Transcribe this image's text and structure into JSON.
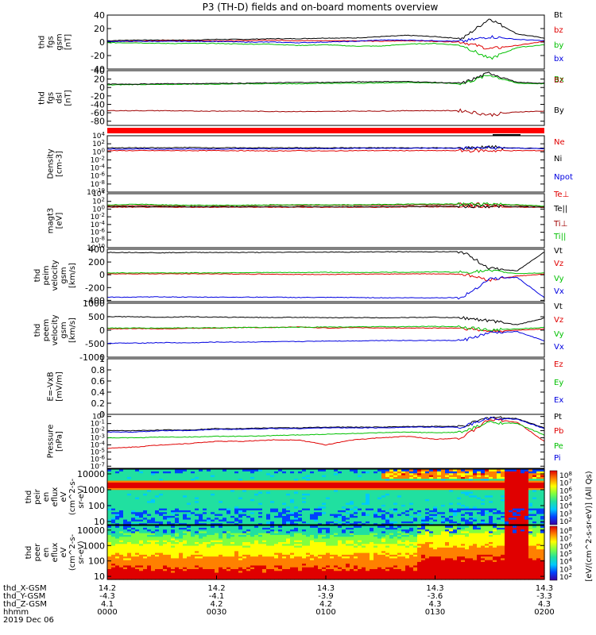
{
  "title": "P3 (TH-D) fields and on-board moments overview",
  "chart_data": [
    {
      "type": "line",
      "ylabel": [
        "thd",
        "fgs",
        "gsm",
        "[nT]"
      ],
      "yticks": [
        40,
        20,
        0,
        -20,
        -40
      ],
      "ylim": [
        -40,
        40
      ],
      "legend": [
        {
          "name": "Bt",
          "color": "#000000"
        },
        {
          "name": "bz",
          "color": "#e00000"
        },
        {
          "name": "by",
          "color": "#00c000"
        },
        {
          "name": "bx",
          "color": "#0000e0"
        }
      ],
      "series": [
        {
          "name": "Bt",
          "values": [
            2,
            3,
            3,
            3,
            4,
            4,
            5,
            5,
            6,
            6,
            8,
            10,
            8,
            5,
            35,
            12,
            6
          ]
        },
        {
          "name": "bz",
          "values": [
            1,
            1,
            2,
            2,
            2,
            2,
            3,
            2,
            2,
            2,
            1,
            2,
            1,
            0,
            -10,
            -5,
            1
          ]
        },
        {
          "name": "by",
          "values": [
            -1,
            -1,
            -2,
            -2,
            -2,
            -3,
            -3,
            -5,
            -4,
            -6,
            -6,
            -3,
            -2,
            -5,
            -25,
            -8,
            -4
          ]
        },
        {
          "name": "bx",
          "values": [
            1,
            1,
            1,
            1,
            1,
            0,
            0,
            -1,
            0,
            1,
            3,
            3,
            2,
            1,
            8,
            4,
            2
          ]
        }
      ]
    },
    {
      "type": "line",
      "ylabel": [
        "thd",
        "fgs",
        "dsl",
        "[nT]"
      ],
      "yticks": [
        40,
        20,
        0,
        -20,
        -40,
        -60,
        -80
      ],
      "ylim": [
        -90,
        40
      ],
      "legend": [
        {
          "name": "Bx",
          "color": "#00c000"
        },
        {
          "name": "By",
          "color": "#000000"
        },
        {
          "name": "Bz",
          "color": "#a00000"
        }
      ],
      "series": [
        {
          "name": "Bx",
          "values": [
            6,
            7,
            7,
            8,
            8,
            9,
            9,
            9,
            10,
            10,
            11,
            12,
            11,
            9,
            30,
            10,
            9
          ]
        },
        {
          "name": "By",
          "values": [
            8,
            8,
            9,
            9,
            10,
            10,
            11,
            12,
            12,
            13,
            14,
            14,
            12,
            10,
            35,
            12,
            10
          ]
        },
        {
          "name": "Bz",
          "values": [
            -55,
            -55,
            -55,
            -56,
            -56,
            -56,
            -57,
            -57,
            -57,
            -56,
            -56,
            -55,
            -55,
            -55,
            -65,
            -58,
            -56
          ]
        }
      ]
    },
    {
      "type": "line",
      "ylabel": [
        "Density",
        "[cm-3]"
      ],
      "yticks": [
        "10^4",
        "10^2",
        "10^0",
        "10^-2",
        "10^-4",
        "10^-6",
        "10^-8",
        "10^-10"
      ],
      "log_y": true,
      "ylim": [
        -10,
        4
      ],
      "legend": [
        {
          "name": "Ne",
          "color": "#e00000"
        },
        {
          "name": "Ni",
          "color": "#000000"
        },
        {
          "name": "Npot",
          "color": "#0000e0"
        }
      ],
      "series": [
        {
          "name": "Ne",
          "values": [
            0.3,
            0.3,
            0.3,
            0.3,
            0.3,
            0.3,
            0.2,
            0.3,
            0.2,
            0.3,
            0.3,
            0.3,
            0.3,
            0.3,
            0.3,
            0.3,
            0.3
          ]
        },
        {
          "name": "Ni",
          "values": [
            1.0,
            1.0,
            1.0,
            1.1,
            1.0,
            1.0,
            1.0,
            1.0,
            1.0,
            1.0,
            1.0,
            1.0,
            1.0,
            0.9,
            1.2,
            0.9,
            0.9
          ]
        },
        {
          "name": "Npot",
          "values": [
            0.7,
            0.7,
            0.7,
            0.7,
            0.7,
            0.8,
            0.7,
            0.8,
            0.8,
            0.9,
            0.9,
            0.9,
            0.9,
            0.9,
            1.0,
            0.9,
            0.8
          ]
        }
      ]
    },
    {
      "type": "line",
      "ylabel": [
        "magt3",
        "[eV]"
      ],
      "yticks": [
        "10^4",
        "10^2",
        "10^0",
        "10^-2",
        "10^-4",
        "10^-6",
        "10^-8",
        "10^-10"
      ],
      "log_y": true,
      "ylim": [
        -10,
        4
      ],
      "legend": [
        {
          "name": "Te⊥",
          "color": "#e00000"
        },
        {
          "name": "Te||",
          "color": "#000000"
        },
        {
          "name": "Ti⊥",
          "color": "#a00000"
        },
        {
          "name": "Ti||",
          "color": "#00c000"
        }
      ],
      "series": [
        {
          "name": "Te⊥",
          "values": [
            0.5,
            0.5,
            0.5,
            0.5,
            0.5,
            0.5,
            0.5,
            0.5,
            0.5,
            0.5,
            0.5,
            0.6,
            0.6,
            0.6,
            0.7,
            0.5,
            0.5
          ]
        },
        {
          "name": "Te||",
          "values": [
            0.6,
            0.6,
            0.6,
            0.6,
            0.6,
            0.6,
            0.6,
            0.6,
            0.6,
            0.6,
            0.6,
            0.7,
            0.7,
            0.7,
            0.8,
            0.6,
            0.5
          ]
        },
        {
          "name": "Ti⊥",
          "values": [
            0.9,
            0.9,
            0.9,
            0.9,
            0.9,
            0.9,
            1.0,
            1.0,
            1.0,
            1.0,
            1.0,
            1.1,
            1.1,
            1.2,
            1.2,
            1.0,
            0.7
          ]
        },
        {
          "name": "Ti||",
          "values": [
            1.0,
            1.3,
            1.1,
            1.0,
            1.0,
            1.0,
            1.1,
            1.1,
            1.1,
            1.1,
            1.2,
            1.3,
            1.3,
            1.3,
            1.4,
            1.1,
            0.8
          ]
        }
      ]
    },
    {
      "type": "line",
      "ylabel": [
        "thd",
        "peim",
        "velocity",
        "gsm",
        "[km/s]"
      ],
      "yticks": [
        400,
        200,
        0,
        -200,
        -400
      ],
      "ylim": [
        -420,
        400
      ],
      "legend": [
        {
          "name": "Vt",
          "color": "#000000"
        },
        {
          "name": "Vz",
          "color": "#e00000"
        },
        {
          "name": "Vy",
          "color": "#00c000"
        },
        {
          "name": "Vx",
          "color": "#0000e0"
        }
      ],
      "series": [
        {
          "name": "Vt",
          "values": [
            350,
            350,
            345,
            350,
            350,
            350,
            350,
            355,
            355,
            355,
            360,
            360,
            360,
            360,
            100,
            60,
            360
          ]
        },
        {
          "name": "Vz",
          "values": [
            15,
            15,
            15,
            15,
            15,
            10,
            10,
            5,
            5,
            10,
            10,
            15,
            15,
            10,
            -80,
            -20,
            10
          ]
        },
        {
          "name": "Vy",
          "values": [
            30,
            30,
            30,
            30,
            30,
            35,
            35,
            35,
            40,
            35,
            40,
            40,
            45,
            40,
            60,
            20,
            30
          ]
        },
        {
          "name": "Vx",
          "values": [
            -350,
            -350,
            -345,
            -350,
            -350,
            -350,
            -350,
            -355,
            -355,
            -355,
            -360,
            -360,
            -360,
            -355,
            -60,
            -40,
            -360
          ]
        }
      ]
    },
    {
      "type": "line",
      "ylabel": [
        "thd",
        "peem",
        "velocity",
        "gsm",
        "[km/s]"
      ],
      "yticks": [
        1000,
        500,
        0,
        -500,
        -1000
      ],
      "ylim": [
        -1000,
        1000
      ],
      "legend": [
        {
          "name": "Vt",
          "color": "#000000"
        },
        {
          "name": "Vz",
          "color": "#e00000"
        },
        {
          "name": "Vy",
          "color": "#00c000"
        },
        {
          "name": "Vx",
          "color": "#0000e0"
        }
      ],
      "series": [
        {
          "name": "Vt",
          "values": [
            500,
            500,
            480,
            500,
            480,
            480,
            470,
            480,
            460,
            470,
            460,
            470,
            480,
            460,
            350,
            200,
            450
          ]
        },
        {
          "name": "Vz",
          "values": [
            50,
            60,
            50,
            70,
            80,
            100,
            100,
            120,
            80,
            100,
            80,
            80,
            80,
            80,
            -50,
            0,
            50
          ]
        },
        {
          "name": "Vy",
          "values": [
            80,
            80,
            80,
            90,
            90,
            100,
            100,
            110,
            120,
            120,
            130,
            130,
            140,
            130,
            0,
            50,
            100
          ]
        },
        {
          "name": "Vx",
          "values": [
            -480,
            -480,
            -460,
            -470,
            -440,
            -440,
            -430,
            -420,
            -400,
            -400,
            -380,
            -380,
            -380,
            -380,
            -100,
            -50,
            -400
          ]
        }
      ]
    },
    {
      "type": "line",
      "ylabel": [
        "E=-VxB",
        "[mV/m]"
      ],
      "yticks": [
        1.0,
        0.8,
        0.6,
        0.4,
        0.2,
        0.0
      ],
      "ylim": [
        0,
        1
      ],
      "legend": [
        {
          "name": "Ez",
          "color": "#e00000"
        },
        {
          "name": "Ey",
          "color": "#00c000"
        },
        {
          "name": "Ex",
          "color": "#0000e0"
        }
      ],
      "series": []
    },
    {
      "type": "line",
      "ylabel": [
        "Pressure",
        "[nPa]"
      ],
      "yticks": [
        "10^0",
        "10^-1",
        "10^-2",
        "10^-3",
        "10^-4",
        "10^-5",
        "10^-6",
        "10^-7"
      ],
      "log_y": true,
      "ylim": [
        -7.3,
        0.3
      ],
      "legend": [
        {
          "name": "Pt",
          "color": "#000000"
        },
        {
          "name": "Pb",
          "color": "#e00000"
        },
        {
          "name": "Pe",
          "color": "#00c000"
        },
        {
          "name": "Pi",
          "color": "#0000e0"
        }
      ],
      "series": [
        {
          "name": "Pt",
          "values": [
            -2.0,
            -2.0,
            -1.9,
            -1.9,
            -1.7,
            -1.7,
            -1.6,
            -1.6,
            -1.5,
            -1.5,
            -1.5,
            -1.4,
            -1.4,
            -1.4,
            -0.1,
            -0.3,
            -1.6
          ]
        },
        {
          "name": "Pb",
          "values": [
            -4.5,
            -4.3,
            -4.0,
            -3.8,
            -3.5,
            -3.5,
            -3.3,
            -3.3,
            -4.0,
            -3.3,
            -3.0,
            -2.8,
            -3.2,
            -3.0,
            -0.4,
            -0.8,
            -3.5
          ]
        },
        {
          "name": "Pe",
          "values": [
            -3.0,
            -3.0,
            -2.9,
            -2.9,
            -2.8,
            -2.8,
            -2.7,
            -2.6,
            -2.5,
            -2.4,
            -2.3,
            -2.2,
            -2.3,
            -2.2,
            -0.8,
            -1.0,
            -2.6
          ]
        },
        {
          "name": "Pi",
          "values": [
            -2.2,
            -2.2,
            -2.0,
            -2.0,
            -1.8,
            -1.8,
            -1.7,
            -1.7,
            -1.6,
            -1.6,
            -1.6,
            -1.5,
            -1.5,
            -1.5,
            -0.2,
            -0.4,
            -1.7
          ]
        }
      ]
    },
    {
      "type": "heatmap",
      "ylabel": [
        "thd",
        "peir",
        "en",
        "eflux",
        "eV",
        "(cm^2-s-",
        "sr-eV)"
      ],
      "yticks": [
        10000,
        1000,
        100,
        10
      ],
      "log_y": true
    },
    {
      "type": "heatmap",
      "ylabel": [
        "thd",
        "peer",
        "en",
        "eflux",
        "eV",
        "(cm^2-s-",
        "sr-eV)"
      ],
      "yticks": [
        10000,
        1000,
        100,
        10
      ],
      "log_y": true
    }
  ],
  "colorbar": {
    "labels": [
      "10^8",
      "10^7",
      "10^6",
      "10^5",
      "10^4",
      "10^3",
      "10^2"
    ],
    "title": "[eV/(cm^2-s-sr-eV)] (All Qs)",
    "upper_labels": [
      "10^8",
      "10^7",
      "10^6",
      "10^5",
      "10^4",
      "10^3",
      "10^2"
    ],
    "lower_labels": [
      "10^8",
      "10^7",
      "10^6",
      "10^5",
      "10^4",
      "10^3",
      "10^2"
    ]
  },
  "x_axis": {
    "rows": [
      {
        "label": "thd_X-GSM",
        "values": [
          "14.2",
          "14.2",
          "14.3",
          "14.3",
          "14.3"
        ]
      },
      {
        "label": "thd_Y-GSM",
        "values": [
          "-4.3",
          "-4.1",
          "-3.9",
          "-3.6",
          "-3.3"
        ]
      },
      {
        "label": "thd_Z-GSM",
        "values": [
          "4.1",
          "4.2",
          "4.2",
          "4.3",
          "4.3"
        ]
      },
      {
        "label": "hhmm",
        "values": [
          "0000",
          "0030",
          "0100",
          "0130",
          "0200"
        ]
      }
    ],
    "date": "2019 Dec 06"
  }
}
